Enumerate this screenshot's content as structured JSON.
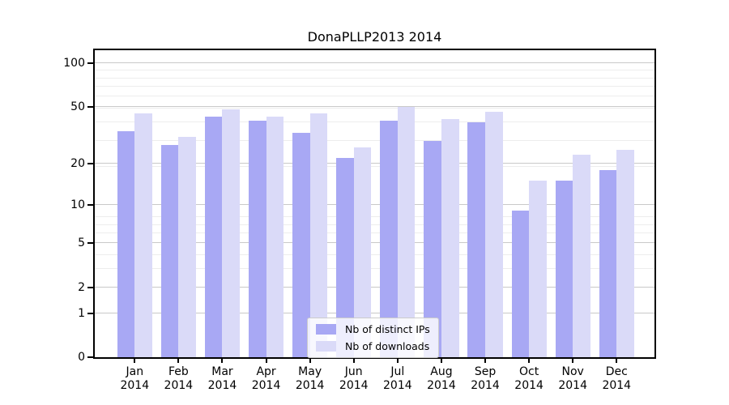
{
  "title": "DonaPLLP2013 2014",
  "chart_data": {
    "type": "bar",
    "title": "DonaPLLP2013 2014",
    "categories": [
      "Jan",
      "Feb",
      "Mar",
      "Apr",
      "May",
      "Jun",
      "Jul",
      "Aug",
      "Sep",
      "Oct",
      "Nov",
      "Dec"
    ],
    "year_label": "2014",
    "series": [
      {
        "name": "Nb of distinct IPs",
        "color": "#a8a8f4",
        "values": [
          34,
          27,
          43,
          40,
          33,
          22,
          40,
          29,
          39,
          9,
          15,
          18
        ]
      },
      {
        "name": "Nb of downloads",
        "color": "#dadaf8",
        "values": [
          45,
          31,
          48,
          43,
          45,
          26,
          50,
          41,
          46,
          15,
          23,
          25
        ]
      }
    ],
    "xlabel": "",
    "ylabel": "",
    "yscale": "log1p",
    "y_ticks": [
      0,
      1,
      2,
      5,
      10,
      20,
      50,
      100
    ],
    "ylim": [
      0,
      130
    ],
    "grid": true,
    "legend_position": "lower center",
    "colors": {
      "major_grid": "#c9c9c9",
      "minor_grid": "#ededed",
      "spine": "#000000",
      "background": "#ffffff"
    }
  }
}
